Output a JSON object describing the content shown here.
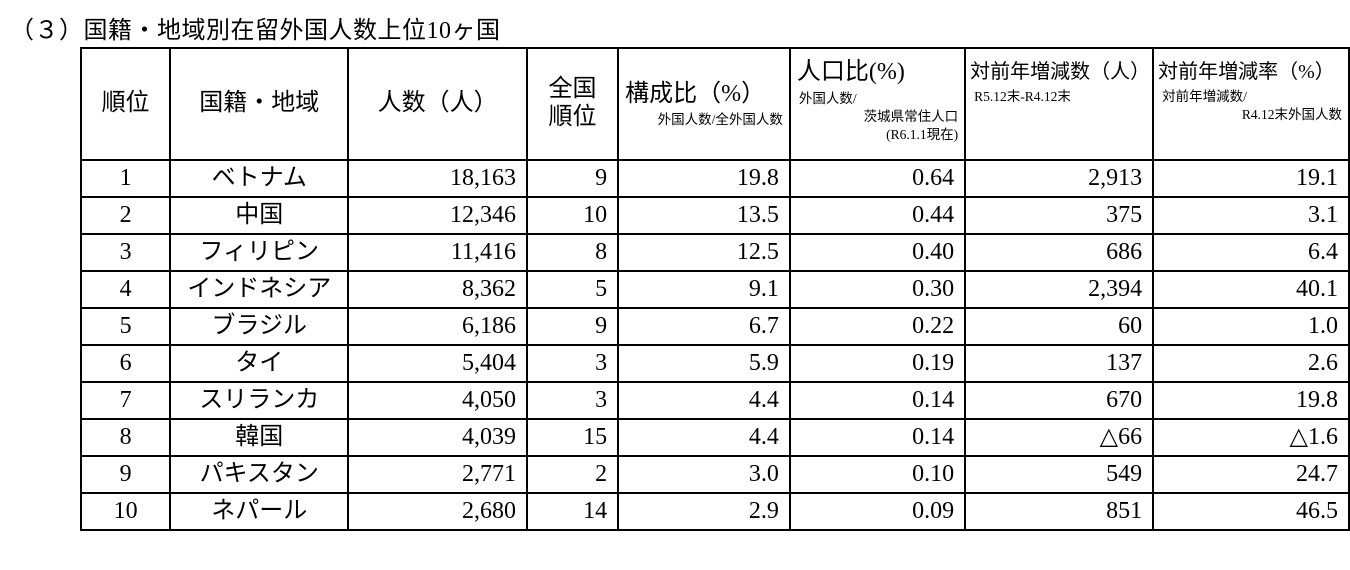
{
  "page": {
    "title": "（３）国籍・地域別在留外国人数上位10ヶ国"
  },
  "table": {
    "headers": {
      "rank": "順位",
      "nationality": "国籍・地域",
      "count": "人数（人）",
      "national_rank": "全国\n順位",
      "composition": {
        "main": "構成比（%）",
        "sub": "外国人数/全外国人数"
      },
      "population_ratio": {
        "main": "人口比(%)",
        "sub1": "外国人数/",
        "sub2": "茨城県常住人口",
        "sub3": "(R6.1.1現在)"
      },
      "yoy_change": {
        "main": "対前年増減数（人）",
        "sub": "R5.12末-R4.12末"
      },
      "yoy_rate": {
        "main": "対前年増減率（%）",
        "sub1": "対前年増減数/",
        "sub2": "R4.12末外国人数"
      }
    },
    "rows": [
      {
        "rank": "1",
        "nationality": "ベトナム",
        "count": "18,163",
        "national_rank": "9",
        "composition": "19.8",
        "population_ratio": "0.64",
        "yoy_change": "2,913",
        "yoy_rate": "19.1"
      },
      {
        "rank": "2",
        "nationality": "中国",
        "count": "12,346",
        "national_rank": "10",
        "composition": "13.5",
        "population_ratio": "0.44",
        "yoy_change": "375",
        "yoy_rate": "3.1"
      },
      {
        "rank": "3",
        "nationality": "フィリピン",
        "count": "11,416",
        "national_rank": "8",
        "composition": "12.5",
        "population_ratio": "0.40",
        "yoy_change": "686",
        "yoy_rate": "6.4"
      },
      {
        "rank": "4",
        "nationality": "インドネシア",
        "count": "8,362",
        "national_rank": "5",
        "composition": "9.1",
        "population_ratio": "0.30",
        "yoy_change": "2,394",
        "yoy_rate": "40.1"
      },
      {
        "rank": "5",
        "nationality": "ブラジル",
        "count": "6,186",
        "national_rank": "9",
        "composition": "6.7",
        "population_ratio": "0.22",
        "yoy_change": "60",
        "yoy_rate": "1.0"
      },
      {
        "rank": "6",
        "nationality": "タイ",
        "count": "5,404",
        "national_rank": "3",
        "composition": "5.9",
        "population_ratio": "0.19",
        "yoy_change": "137",
        "yoy_rate": "2.6"
      },
      {
        "rank": "7",
        "nationality": "スリランカ",
        "count": "4,050",
        "national_rank": "3",
        "composition": "4.4",
        "population_ratio": "0.14",
        "yoy_change": "670",
        "yoy_rate": "19.8"
      },
      {
        "rank": "8",
        "nationality": "韓国",
        "count": "4,039",
        "national_rank": "15",
        "composition": "4.4",
        "population_ratio": "0.14",
        "yoy_change": "△66",
        "yoy_rate": "△1.6"
      },
      {
        "rank": "9",
        "nationality": "パキスタン",
        "count": "2,771",
        "national_rank": "2",
        "composition": "3.0",
        "population_ratio": "0.10",
        "yoy_change": "549",
        "yoy_rate": "24.7"
      },
      {
        "rank": "10",
        "nationality": "ネパール",
        "count": "2,680",
        "national_rank": "14",
        "composition": "2.9",
        "population_ratio": "0.09",
        "yoy_change": "851",
        "yoy_rate": "46.5"
      }
    ]
  }
}
